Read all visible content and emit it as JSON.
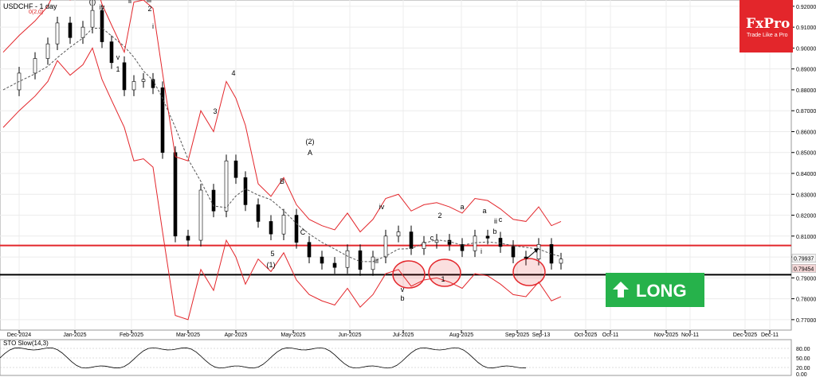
{
  "header": {
    "symbol_timeframe": "USDCHF - 1 day",
    "subtitle": "0(2,0)"
  },
  "brand": {
    "logo": "FxPro",
    "tagline": "Trade Like a Pro"
  },
  "signal": {
    "label": "LONG",
    "color": "#26b24b"
  },
  "oscillator": {
    "title": "STO Slow(14,3)",
    "levels": [
      "80.00",
      "50.00",
      "20.00",
      "0.00"
    ]
  },
  "colors": {
    "support_line": "#000000",
    "resistance_line": "#e3262b",
    "bands": "#e3262b",
    "ma": "#555555",
    "bull_candle": "#000000",
    "bear_candle": "#000000"
  },
  "chart_data": {
    "type": "line",
    "title": "USDCHF - 1 day",
    "x_ticks": [
      "Dec-2024",
      "Jan-2025",
      "Feb-2025",
      "Mar-2025",
      "Apr-2025",
      "May-2025",
      "Jun-2025",
      "Jul-2025",
      "Aug-2025",
      "Sep-2025",
      "Sep-13",
      "Oct-2025",
      "Oct-11",
      "Nov-2025",
      "Nov-11",
      "Dec-2025",
      "Dec-11"
    ],
    "y_ticks": [
      "0.92000",
      "0.91000",
      "0.90000",
      "0.89000",
      "0.88000",
      "0.87000",
      "0.86000",
      "0.85000",
      "0.84000",
      "0.83000",
      "0.82000",
      "0.81000",
      "0.80000",
      "0.79000",
      "0.78000",
      "0.77000"
    ],
    "ylim": [
      0.765,
      0.923
    ],
    "price_labels": [
      "0.79937",
      "0.79454"
    ],
    "horizontal_levels": [
      {
        "name": "resistance",
        "value": 0.8055
      },
      {
        "name": "support",
        "value": 0.7915
      }
    ],
    "series": [
      {
        "name": "Close",
        "x": [
          0,
          5,
          10,
          14,
          17,
          21,
          25,
          28,
          31,
          34,
          38,
          41,
          44,
          47,
          50,
          54,
          58,
          62,
          66,
          70,
          73,
          76,
          80,
          84,
          88,
          92,
          96,
          100,
          104,
          108,
          112,
          116,
          120,
          124,
          128,
          132,
          136,
          140,
          144,
          148,
          152,
          156,
          160,
          164,
          168,
          172,
          175
        ],
        "values": [
          0.88,
          0.888,
          0.895,
          0.902,
          0.912,
          0.905,
          0.91,
          0.918,
          0.903,
          0.893,
          0.88,
          0.884,
          0.885,
          0.881,
          0.85,
          0.81,
          0.808,
          0.832,
          0.822,
          0.846,
          0.838,
          0.825,
          0.817,
          0.811,
          0.82,
          0.807,
          0.8,
          0.797,
          0.795,
          0.803,
          0.794,
          0.8,
          0.81,
          0.812,
          0.804,
          0.807,
          0.808,
          0.806,
          0.803,
          0.81,
          0.809,
          0.805,
          0.8,
          0.799,
          0.806,
          0.797,
          0.799
        ]
      }
    ],
    "wave_labels": [
      "(I)",
      "i",
      "ii",
      "iii",
      "iv",
      "v",
      "1",
      "2",
      "3",
      "4",
      "5",
      "(1)",
      "(2)",
      "A",
      "B",
      "C",
      "a",
      "b",
      "c",
      "1",
      "2",
      "a",
      "b",
      "c",
      "i",
      "ii",
      "iii",
      "iv",
      "v"
    ],
    "legend": "none",
    "grid": true
  }
}
